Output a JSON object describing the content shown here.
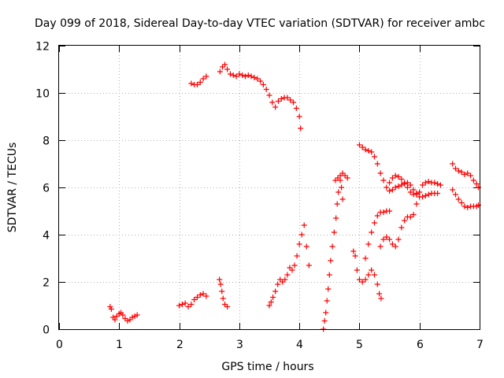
{
  "chart_data": {
    "type": "scatter",
    "title": "Day 099 of 2018, Sidereal Day-to-day VTEC variation (SDTVAR) for receiver ambc",
    "xlabel": "GPS time / hours",
    "ylabel": "SDTVAR / TECUs",
    "xlim": [
      0,
      7
    ],
    "ylim": [
      0,
      12
    ],
    "xticks": [
      "0",
      "1",
      "2",
      "3",
      "4",
      "5",
      "6",
      "7"
    ],
    "yticks": [
      "0",
      "2",
      "4",
      "6",
      "8",
      "10",
      "12"
    ],
    "grid": true,
    "marker": "+",
    "color": "#ff0000",
    "series": [
      {
        "name": "s1",
        "points": [
          [
            0.85,
            0.95
          ],
          [
            0.87,
            0.85
          ],
          [
            0.9,
            0.5
          ],
          [
            0.93,
            0.4
          ],
          [
            0.96,
            0.55
          ],
          [
            1.0,
            0.65
          ],
          [
            1.03,
            0.7
          ],
          [
            1.06,
            0.6
          ],
          [
            1.1,
            0.45
          ],
          [
            1.14,
            0.35
          ],
          [
            1.18,
            0.4
          ],
          [
            1.22,
            0.5
          ],
          [
            1.26,
            0.55
          ],
          [
            1.3,
            0.6
          ]
        ]
      },
      {
        "name": "s2",
        "points": [
          [
            2.0,
            1.0
          ],
          [
            2.05,
            1.05
          ],
          [
            2.1,
            1.1
          ],
          [
            2.15,
            0.95
          ],
          [
            2.2,
            1.05
          ],
          [
            2.25,
            1.25
          ],
          [
            2.3,
            1.35
          ],
          [
            2.35,
            1.45
          ],
          [
            2.4,
            1.5
          ],
          [
            2.45,
            1.4
          ]
        ]
      },
      {
        "name": "s3",
        "points": [
          [
            2.2,
            10.4
          ],
          [
            2.25,
            10.35
          ],
          [
            2.3,
            10.35
          ],
          [
            2.35,
            10.45
          ],
          [
            2.4,
            10.6
          ],
          [
            2.45,
            10.7
          ]
        ]
      },
      {
        "name": "s4",
        "points": [
          [
            2.67,
            2.1
          ],
          [
            2.69,
            1.9
          ],
          [
            2.71,
            1.6
          ],
          [
            2.73,
            1.3
          ],
          [
            2.76,
            1.05
          ],
          [
            2.8,
            0.95
          ]
        ]
      },
      {
        "name": "s5",
        "points": [
          [
            2.68,
            10.9
          ],
          [
            2.72,
            11.1
          ],
          [
            2.76,
            11.2
          ],
          [
            2.8,
            11.0
          ],
          [
            2.85,
            10.8
          ],
          [
            2.9,
            10.75
          ],
          [
            2.95,
            10.7
          ],
          [
            3.0,
            10.8
          ],
          [
            3.05,
            10.75
          ],
          [
            3.1,
            10.7
          ],
          [
            3.15,
            10.75
          ],
          [
            3.2,
            10.7
          ],
          [
            3.25,
            10.65
          ],
          [
            3.3,
            10.6
          ],
          [
            3.35,
            10.5
          ],
          [
            3.4,
            10.35
          ],
          [
            3.45,
            10.15
          ],
          [
            3.5,
            9.9
          ],
          [
            3.55,
            9.6
          ],
          [
            3.6,
            9.4
          ],
          [
            3.65,
            9.65
          ],
          [
            3.7,
            9.75
          ],
          [
            3.75,
            9.8
          ],
          [
            3.8,
            9.8
          ],
          [
            3.85,
            9.7
          ],
          [
            3.9,
            9.6
          ],
          [
            3.95,
            9.35
          ],
          [
            4.0,
            9.0
          ],
          [
            4.02,
            8.5
          ]
        ]
      },
      {
        "name": "s6",
        "points": [
          [
            3.5,
            1.0
          ],
          [
            3.53,
            1.15
          ],
          [
            3.56,
            1.35
          ],
          [
            3.6,
            1.6
          ],
          [
            3.64,
            1.9
          ],
          [
            3.68,
            2.1
          ],
          [
            3.72,
            2.0
          ],
          [
            3.76,
            2.1
          ],
          [
            3.8,
            2.3
          ],
          [
            3.84,
            2.6
          ],
          [
            3.88,
            2.5
          ],
          [
            3.92,
            2.7
          ],
          [
            3.96,
            3.1
          ],
          [
            4.0,
            3.6
          ],
          [
            4.04,
            4.0
          ],
          [
            4.08,
            4.4
          ],
          [
            4.12,
            3.5
          ],
          [
            4.16,
            2.7
          ]
        ]
      },
      {
        "name": "s7",
        "points": [
          [
            4.4,
            0.0
          ],
          [
            4.42,
            0.35
          ],
          [
            4.44,
            0.7
          ],
          [
            4.46,
            1.2
          ],
          [
            4.48,
            1.7
          ],
          [
            4.5,
            2.3
          ],
          [
            4.52,
            2.9
          ],
          [
            4.55,
            3.5
          ],
          [
            4.58,
            4.1
          ],
          [
            4.61,
            4.7
          ],
          [
            4.63,
            5.3
          ],
          [
            4.65,
            5.8
          ],
          [
            4.68,
            6.3
          ],
          [
            4.7,
            6.0
          ],
          [
            4.72,
            5.5
          ]
        ]
      },
      {
        "name": "s8",
        "points": [
          [
            4.6,
            6.3
          ],
          [
            4.64,
            6.4
          ],
          [
            4.68,
            6.5
          ],
          [
            4.72,
            6.6
          ],
          [
            4.76,
            6.5
          ],
          [
            4.8,
            6.4
          ]
        ]
      },
      {
        "name": "s9",
        "points": [
          [
            4.9,
            3.3
          ],
          [
            4.93,
            3.1
          ],
          [
            4.96,
            2.5
          ],
          [
            5.0,
            2.1
          ],
          [
            5.05,
            2.0
          ],
          [
            5.1,
            2.1
          ],
          [
            5.15,
            2.3
          ],
          [
            5.2,
            2.5
          ],
          [
            5.25,
            2.3
          ],
          [
            5.3,
            1.9
          ],
          [
            5.33,
            1.5
          ],
          [
            5.36,
            1.3
          ]
        ]
      },
      {
        "name": "s10",
        "points": [
          [
            5.0,
            7.8
          ],
          [
            5.05,
            7.7
          ],
          [
            5.1,
            7.6
          ],
          [
            5.15,
            7.55
          ],
          [
            5.2,
            7.5
          ],
          [
            5.25,
            7.3
          ],
          [
            5.3,
            7.0
          ],
          [
            5.35,
            6.6
          ],
          [
            5.4,
            6.3
          ],
          [
            5.45,
            6.0
          ],
          [
            5.5,
            5.85
          ],
          [
            5.55,
            5.9
          ],
          [
            5.6,
            6.0
          ],
          [
            5.65,
            6.05
          ],
          [
            5.7,
            6.1
          ],
          [
            5.75,
            6.15
          ],
          [
            5.8,
            6.2
          ],
          [
            5.85,
            6.1
          ],
          [
            5.9,
            5.9
          ],
          [
            5.95,
            5.7
          ],
          [
            6.0,
            5.6
          ],
          [
            6.05,
            5.6
          ],
          [
            6.1,
            5.65
          ],
          [
            6.15,
            5.7
          ],
          [
            6.2,
            5.75
          ],
          [
            6.25,
            5.75
          ],
          [
            6.3,
            5.75
          ]
        ]
      },
      {
        "name": "s11",
        "points": [
          [
            5.1,
            3.0
          ],
          [
            5.15,
            3.6
          ],
          [
            5.2,
            4.1
          ],
          [
            5.25,
            4.5
          ],
          [
            5.3,
            4.8
          ],
          [
            5.35,
            4.95
          ],
          [
            5.4,
            4.95
          ],
          [
            5.45,
            5.0
          ],
          [
            5.5,
            5.0
          ]
        ]
      },
      {
        "name": "s12",
        "points": [
          [
            5.35,
            3.5
          ],
          [
            5.4,
            3.8
          ],
          [
            5.45,
            3.9
          ],
          [
            5.5,
            3.8
          ],
          [
            5.55,
            3.6
          ],
          [
            5.6,
            3.5
          ],
          [
            5.65,
            3.8
          ],
          [
            5.7,
            4.3
          ],
          [
            5.75,
            4.6
          ],
          [
            5.8,
            4.75
          ],
          [
            5.85,
            4.75
          ],
          [
            5.9,
            4.85
          ],
          [
            5.95,
            5.3
          ],
          [
            6.0,
            5.8
          ],
          [
            6.05,
            6.1
          ],
          [
            6.1,
            6.2
          ],
          [
            6.15,
            6.25
          ],
          [
            6.2,
            6.2
          ],
          [
            6.25,
            6.2
          ],
          [
            6.3,
            6.15
          ],
          [
            6.35,
            6.1
          ]
        ]
      },
      {
        "name": "s13",
        "points": [
          [
            5.5,
            6.2
          ],
          [
            5.55,
            6.4
          ],
          [
            5.6,
            6.5
          ],
          [
            5.65,
            6.45
          ],
          [
            5.7,
            6.35
          ],
          [
            5.75,
            6.2
          ],
          [
            5.8,
            6.0
          ],
          [
            5.85,
            5.8
          ],
          [
            5.9,
            5.7
          ],
          [
            5.95,
            5.75
          ]
        ]
      },
      {
        "name": "s14",
        "points": [
          [
            6.55,
            7.0
          ],
          [
            6.6,
            6.8
          ],
          [
            6.65,
            6.7
          ],
          [
            6.7,
            6.65
          ],
          [
            6.75,
            6.55
          ],
          [
            6.8,
            6.6
          ],
          [
            6.85,
            6.5
          ],
          [
            6.9,
            6.3
          ],
          [
            6.95,
            6.15
          ],
          [
            6.98,
            6.0
          ]
        ]
      },
      {
        "name": "s15",
        "points": [
          [
            6.55,
            5.9
          ],
          [
            6.6,
            5.7
          ],
          [
            6.65,
            5.5
          ],
          [
            6.7,
            5.35
          ],
          [
            6.75,
            5.2
          ],
          [
            6.8,
            5.15
          ],
          [
            6.85,
            5.2
          ],
          [
            6.9,
            5.2
          ],
          [
            6.95,
            5.2
          ],
          [
            6.98,
            5.25
          ]
        ]
      }
    ]
  }
}
